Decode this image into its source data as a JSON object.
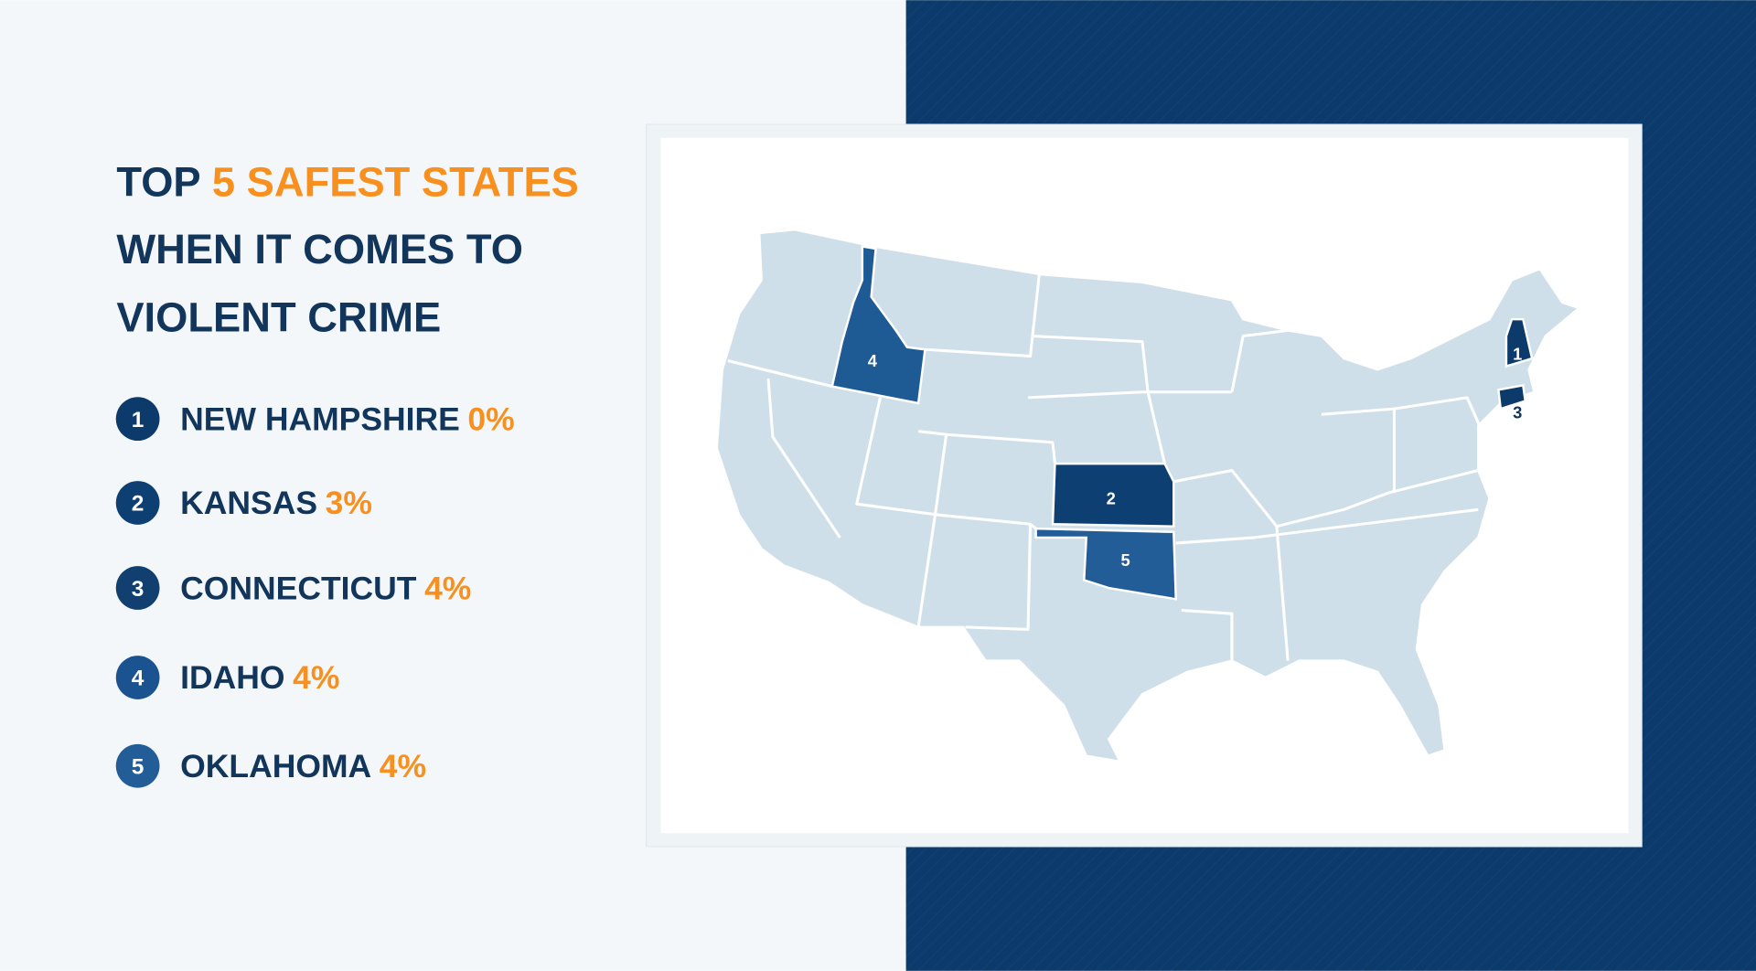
{
  "title": {
    "lead": "TOP",
    "highlight": "5 SAFEST STATES",
    "lines": [
      "WHEN IT COMES TO",
      "VIOLENT CRIME"
    ]
  },
  "items": [
    {
      "rank": "1",
      "state": "NEW HAMPSHIRE",
      "value": "0%"
    },
    {
      "rank": "2",
      "state": "KANSAS",
      "value": "3%"
    },
    {
      "rank": "3",
      "state": "CONNECTICUT",
      "value": "4%"
    },
    {
      "rank": "4",
      "state": "IDAHO",
      "value": "4%"
    },
    {
      "rank": "5",
      "state": "OKLAHOMA",
      "value": "4%"
    }
  ]
}
